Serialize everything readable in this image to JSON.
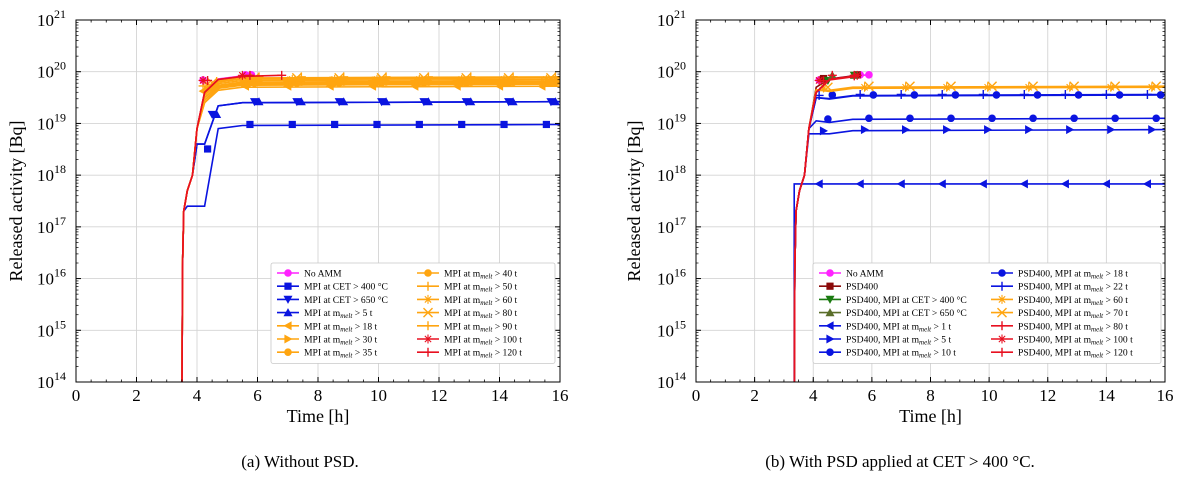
{
  "chart_data": [
    {
      "type": "line",
      "caption": "(a) Without PSD.",
      "xlabel": "Time [h]",
      "ylabel": "Released activity [Bq]",
      "xlim": [
        0,
        16
      ],
      "ylim_log10": [
        14,
        21
      ],
      "yscale": "log",
      "xticks": [
        "0",
        "2",
        "4",
        "6",
        "8",
        "10",
        "12",
        "14",
        "16"
      ],
      "yticks_exp": [
        "14",
        "15",
        "16",
        "17",
        "18",
        "19",
        "20",
        "21"
      ],
      "ytick_base": "10",
      "grid": true,
      "legend_position": "lower-right",
      "legend_columns": 2,
      "series": [
        {
          "name": "No AMM",
          "color": "#ff22ff",
          "marker": "circle",
          "end": 5.8,
          "final_exp": 19.94,
          "rise_exp": 19.6
        },
        {
          "name": "MPI at CET > 400 °C",
          "color": "#0a14e0",
          "marker": "square",
          "end": 16,
          "final_exp": 18.98,
          "rise_exp": 17.4
        },
        {
          "name": "MPI at CET > 650 °C",
          "color": "#0a14e0",
          "marker": "triangle-down",
          "end": 16,
          "final_exp": 19.42,
          "rise_exp": 18.6
        },
        {
          "name": "MPI at m_melt > 5 t",
          "name_main": "MPI at m",
          "name_sub": "melt",
          "name_suffix": " > 5 t",
          "color": "#0a14e0",
          "marker": "triangle-up",
          "end": 16,
          "final_exp": 19.42,
          "rise_exp": 18.6
        },
        {
          "name": "MPI at m_melt > 18 t",
          "name_main": "MPI at m",
          "name_sub": "melt",
          "name_suffix": " > 18 t",
          "color": "#ffa510",
          "marker": "triangle-left",
          "end": 16,
          "final_exp": 19.72,
          "rise_exp": 19.4
        },
        {
          "name": "MPI at m_melt > 30 t",
          "name_main": "MPI at m",
          "name_sub": "melt",
          "name_suffix": " > 30 t",
          "color": "#ffa510",
          "marker": "triangle-right",
          "end": 16,
          "final_exp": 19.76,
          "rise_exp": 19.4
        },
        {
          "name": "MPI at m_melt > 35 t",
          "name_main": "MPI at m",
          "name_sub": "melt",
          "name_suffix": " > 35 t",
          "color": "#ffa510",
          "marker": "circle",
          "end": 16,
          "final_exp": 19.78,
          "rise_exp": 19.45
        },
        {
          "name": "MPI at m_melt > 40 t",
          "name_main": "MPI at m",
          "name_sub": "melt",
          "name_suffix": " > 40 t",
          "color": "#ffa510",
          "marker": "circle",
          "end": 16,
          "final_exp": 19.8,
          "rise_exp": 19.5
        },
        {
          "name": "MPI at m_melt > 50 t",
          "name_main": "MPI at m",
          "name_sub": "melt",
          "name_suffix": " > 50 t",
          "color": "#ffa510",
          "marker": "plus",
          "end": 16,
          "final_exp": 19.82,
          "rise_exp": 19.5
        },
        {
          "name": "MPI at m_melt > 60 t",
          "name_main": "MPI at m",
          "name_sub": "melt",
          "name_suffix": " > 60 t",
          "color": "#ffa510",
          "marker": "star",
          "end": 16,
          "final_exp": 19.85,
          "rise_exp": 19.55
        },
        {
          "name": "MPI at m_melt > 80 t",
          "name_main": "MPI at m",
          "name_sub": "melt",
          "name_suffix": " > 80 t",
          "color": "#ffa510",
          "marker": "x",
          "end": 16,
          "final_exp": 19.88,
          "rise_exp": 19.55
        },
        {
          "name": "MPI at m_melt > 90 t",
          "name_main": "MPI at m",
          "name_sub": "melt",
          "name_suffix": " > 90 t",
          "color": "#ffa510",
          "marker": "plus",
          "end": 16,
          "final_exp": 19.9,
          "rise_exp": 19.6
        },
        {
          "name": "MPI at m_melt > 100 t",
          "name_main": "MPI at m",
          "name_sub": "melt",
          "name_suffix": " > 100 t",
          "color": "#e81020",
          "marker": "star",
          "end": 5.5,
          "final_exp": 19.93,
          "rise_exp": 19.6
        },
        {
          "name": "MPI at m_melt > 120 t",
          "name_main": "MPI at m",
          "name_sub": "melt",
          "name_suffix": " > 120 t",
          "color": "#e81020",
          "marker": "plus",
          "end": 6.8,
          "final_exp": 19.93,
          "rise_exp": 19.6
        }
      ]
    },
    {
      "type": "line",
      "caption": "(b) With PSD applied at CET > 400 °C.",
      "xlabel": "Time [h]",
      "ylabel": "Released activity [Bq]",
      "xlim": [
        0,
        16
      ],
      "ylim_log10": [
        14,
        21
      ],
      "yscale": "log",
      "xticks": [
        "0",
        "2",
        "4",
        "6",
        "8",
        "10",
        "12",
        "14",
        "16"
      ],
      "yticks_exp": [
        "14",
        "15",
        "16",
        "17",
        "18",
        "19",
        "20",
        "21"
      ],
      "ytick_base": "10",
      "grid": true,
      "legend_position": "lower-right",
      "legend_columns": 2,
      "series": [
        {
          "name": "No AMM",
          "color": "#ff22ff",
          "marker": "circle",
          "end": 5.9,
          "final_exp": 19.94,
          "rise_exp": 19.6
        },
        {
          "name": "PSD400",
          "color": "#8b0a0a",
          "marker": "square",
          "end": 5.5,
          "final_exp": 19.94,
          "rise_exp": 19.7
        },
        {
          "name": "PSD400, MPI at CET > 400 °C",
          "color": "#1a7a10",
          "marker": "triangle-down",
          "end": 5.4,
          "final_exp": 19.93,
          "rise_exp": 19.6
        },
        {
          "name": "PSD400, MPI at CET > 650 °C",
          "color": "#5a6e2a",
          "marker": "triangle-up",
          "end": 5.4,
          "final_exp": 19.93,
          "rise_exp": 19.6
        },
        {
          "name": "PSD400, MPI at m_melt > 1 t",
          "name_main": "PSD400, MPI at m",
          "name_sub": "melt",
          "name_suffix": " > 1 t",
          "color": "#0a14e0",
          "marker": "triangle-left",
          "end": 16,
          "final_exp": 17.83,
          "rise_exp": 17.83
        },
        {
          "name": "PSD400, MPI at m_melt > 5 t",
          "name_main": "PSD400, MPI at m",
          "name_sub": "melt",
          "name_suffix": " > 5 t",
          "color": "#0a14e0",
          "marker": "triangle-right",
          "end": 16,
          "final_exp": 18.88,
          "rise_exp": 18.8
        },
        {
          "name": "PSD400, MPI at m_melt > 10 t",
          "name_main": "PSD400, MPI at m",
          "name_sub": "melt",
          "name_suffix": " > 10 t",
          "color": "#0a14e0",
          "marker": "circle",
          "end": 16,
          "final_exp": 19.1,
          "rise_exp": 19.05
        },
        {
          "name": "PSD400, MPI at m_melt > 18 t",
          "name_main": "PSD400, MPI at m",
          "name_sub": "melt",
          "name_suffix": " > 18 t",
          "color": "#0a14e0",
          "marker": "circle",
          "end": 16,
          "final_exp": 19.55,
          "rise_exp": 19.5
        },
        {
          "name": "PSD400, MPI at m_melt > 22 t",
          "name_main": "PSD400, MPI at m",
          "name_sub": "melt",
          "name_suffix": " > 22 t",
          "color": "#0a14e0",
          "marker": "plus",
          "end": 16,
          "final_exp": 19.56,
          "rise_exp": 19.5
        },
        {
          "name": "PSD400, MPI at m_melt > 60 t",
          "name_main": "PSD400, MPI at m",
          "name_sub": "melt",
          "name_suffix": " > 60 t",
          "color": "#ffa510",
          "marker": "star",
          "end": 16,
          "final_exp": 19.7,
          "rise_exp": 19.65
        },
        {
          "name": "PSD400, MPI at m_melt > 70 t",
          "name_main": "PSD400, MPI at m",
          "name_sub": "melt",
          "name_suffix": " > 70 t",
          "color": "#ffa510",
          "marker": "x",
          "end": 16,
          "final_exp": 19.72,
          "rise_exp": 19.65
        },
        {
          "name": "PSD400, MPI at m_melt > 80 t",
          "name_main": "PSD400, MPI at m",
          "name_sub": "melt",
          "name_suffix": " > 80 t",
          "color": "#e81020",
          "marker": "plus",
          "end": 5.4,
          "final_exp": 19.93,
          "rise_exp": 19.6
        },
        {
          "name": "PSD400, MPI at m_melt > 100 t",
          "name_main": "PSD400, MPI at m",
          "name_sub": "melt",
          "name_suffix": " > 100 t",
          "color": "#e81020",
          "marker": "star",
          "end": 5.5,
          "final_exp": 19.93,
          "rise_exp": 19.6
        },
        {
          "name": "PSD400, MPI at m_melt > 120 t",
          "name_main": "PSD400, MPI at m",
          "name_sub": "melt",
          "name_suffix": " > 120 t",
          "color": "#e81020",
          "marker": "plus",
          "end": 5.4,
          "final_exp": 19.92,
          "rise_exp": 19.6
        }
      ]
    }
  ]
}
